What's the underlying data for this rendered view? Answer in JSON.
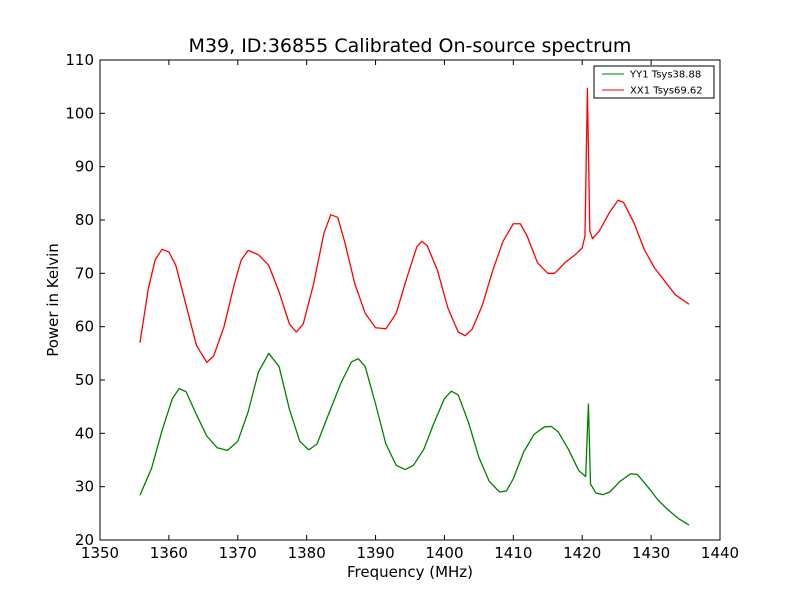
{
  "chart_data": {
    "type": "line",
    "title": "M39, ID:36855 Calibrated On-source spectrum",
    "xlabel": "Frequency (MHz)",
    "ylabel": "Power in Kelvin",
    "xlim": [
      1350,
      1440
    ],
    "ylim": [
      20,
      110
    ],
    "xticks": [
      "1350",
      "1360",
      "1370",
      "1380",
      "1390",
      "1400",
      "1410",
      "1420",
      "1430",
      "1440"
    ],
    "yticks": [
      "20",
      "30",
      "40",
      "50",
      "60",
      "70",
      "80",
      "90",
      "100",
      "110"
    ],
    "grid": false,
    "legend_position": "top-right",
    "series": [
      {
        "name": "YY1 Tsys38.88",
        "color": "#008000",
        "points": [
          [
            1355.8,
            28.4
          ],
          [
            1357.5,
            33.5
          ],
          [
            1359.0,
            40.5
          ],
          [
            1360.5,
            46.5
          ],
          [
            1361.5,
            48.4
          ],
          [
            1362.5,
            47.8
          ],
          [
            1364.0,
            43.5
          ],
          [
            1365.5,
            39.5
          ],
          [
            1367.0,
            37.3
          ],
          [
            1368.5,
            36.8
          ],
          [
            1370.0,
            38.5
          ],
          [
            1371.5,
            44.0
          ],
          [
            1373.0,
            51.5
          ],
          [
            1374.5,
            55.0
          ],
          [
            1376.0,
            52.5
          ],
          [
            1377.5,
            44.5
          ],
          [
            1379.0,
            38.5
          ],
          [
            1380.3,
            36.9
          ],
          [
            1381.5,
            38.0
          ],
          [
            1383.0,
            43.0
          ],
          [
            1385.0,
            49.5
          ],
          [
            1386.5,
            53.4
          ],
          [
            1387.5,
            54.0
          ],
          [
            1388.5,
            52.5
          ],
          [
            1390.0,
            45.5
          ],
          [
            1391.5,
            38.0
          ],
          [
            1393.0,
            34.0
          ],
          [
            1394.3,
            33.2
          ],
          [
            1395.5,
            34.0
          ],
          [
            1397.0,
            37.0
          ],
          [
            1398.5,
            42.0
          ],
          [
            1400.0,
            46.5
          ],
          [
            1401.0,
            47.9
          ],
          [
            1402.0,
            47.2
          ],
          [
            1403.5,
            42.0
          ],
          [
            1405.0,
            35.5
          ],
          [
            1406.5,
            31.0
          ],
          [
            1408.0,
            29.0
          ],
          [
            1409.0,
            29.2
          ],
          [
            1410.0,
            31.5
          ],
          [
            1411.5,
            36.5
          ],
          [
            1413.0,
            39.8
          ],
          [
            1414.5,
            41.2
          ],
          [
            1415.5,
            41.3
          ],
          [
            1416.5,
            40.3
          ],
          [
            1418.0,
            37.0
          ],
          [
            1419.5,
            33.0
          ],
          [
            1420.5,
            31.9
          ],
          [
            1420.9,
            45.5
          ],
          [
            1421.2,
            30.5
          ],
          [
            1422.0,
            28.8
          ],
          [
            1423.0,
            28.5
          ],
          [
            1424.0,
            29.0
          ],
          [
            1425.5,
            31.0
          ],
          [
            1427.0,
            32.4
          ],
          [
            1428.0,
            32.3
          ],
          [
            1429.5,
            30.0
          ],
          [
            1431.0,
            27.5
          ],
          [
            1432.5,
            25.6
          ],
          [
            1434.0,
            24.0
          ],
          [
            1435.5,
            22.8
          ]
        ]
      },
      {
        "name": "XX1 Tsys69.62",
        "color": "#ff0000",
        "points": [
          [
            1355.8,
            57.0
          ],
          [
            1357.0,
            67.0
          ],
          [
            1358.0,
            72.5
          ],
          [
            1359.0,
            74.5
          ],
          [
            1360.0,
            74.0
          ],
          [
            1361.0,
            71.5
          ],
          [
            1362.5,
            64.0
          ],
          [
            1364.0,
            56.5
          ],
          [
            1365.5,
            53.3
          ],
          [
            1366.5,
            54.5
          ],
          [
            1368.0,
            60.0
          ],
          [
            1369.5,
            68.0
          ],
          [
            1370.5,
            72.5
          ],
          [
            1371.5,
            74.3
          ],
          [
            1373.0,
            73.5
          ],
          [
            1374.5,
            71.5
          ],
          [
            1376.0,
            66.5
          ],
          [
            1377.5,
            60.5
          ],
          [
            1378.5,
            59.0
          ],
          [
            1379.5,
            60.5
          ],
          [
            1381.0,
            68.0
          ],
          [
            1382.5,
            77.5
          ],
          [
            1383.5,
            81.0
          ],
          [
            1384.5,
            80.5
          ],
          [
            1385.5,
            76.0
          ],
          [
            1387.0,
            68.0
          ],
          [
            1388.5,
            62.5
          ],
          [
            1390.0,
            59.8
          ],
          [
            1391.5,
            59.6
          ],
          [
            1393.0,
            62.5
          ],
          [
            1394.5,
            69.0
          ],
          [
            1396.0,
            75.0
          ],
          [
            1396.7,
            76.0
          ],
          [
            1397.5,
            75.2
          ],
          [
            1399.0,
            70.5
          ],
          [
            1400.5,
            63.5
          ],
          [
            1402.0,
            59.0
          ],
          [
            1403.0,
            58.3
          ],
          [
            1404.0,
            59.5
          ],
          [
            1405.5,
            64.0
          ],
          [
            1407.0,
            70.5
          ],
          [
            1408.5,
            76.0
          ],
          [
            1410.0,
            79.3
          ],
          [
            1411.0,
            79.3
          ],
          [
            1412.0,
            77.0
          ],
          [
            1413.5,
            72.0
          ],
          [
            1415.0,
            70.0
          ],
          [
            1416.0,
            70.0
          ],
          [
            1417.5,
            72.0
          ],
          [
            1419.0,
            73.5
          ],
          [
            1420.0,
            74.8
          ],
          [
            1420.4,
            77.0
          ],
          [
            1420.75,
            104.7
          ],
          [
            1421.1,
            78.0
          ],
          [
            1421.5,
            76.5
          ],
          [
            1422.5,
            78.0
          ],
          [
            1424.0,
            81.5
          ],
          [
            1425.2,
            83.7
          ],
          [
            1426.0,
            83.3
          ],
          [
            1427.5,
            79.5
          ],
          [
            1429.0,
            74.5
          ],
          [
            1430.5,
            71.0
          ],
          [
            1432.0,
            68.5
          ],
          [
            1433.5,
            66.0
          ],
          [
            1435.5,
            64.2
          ]
        ]
      }
    ]
  }
}
